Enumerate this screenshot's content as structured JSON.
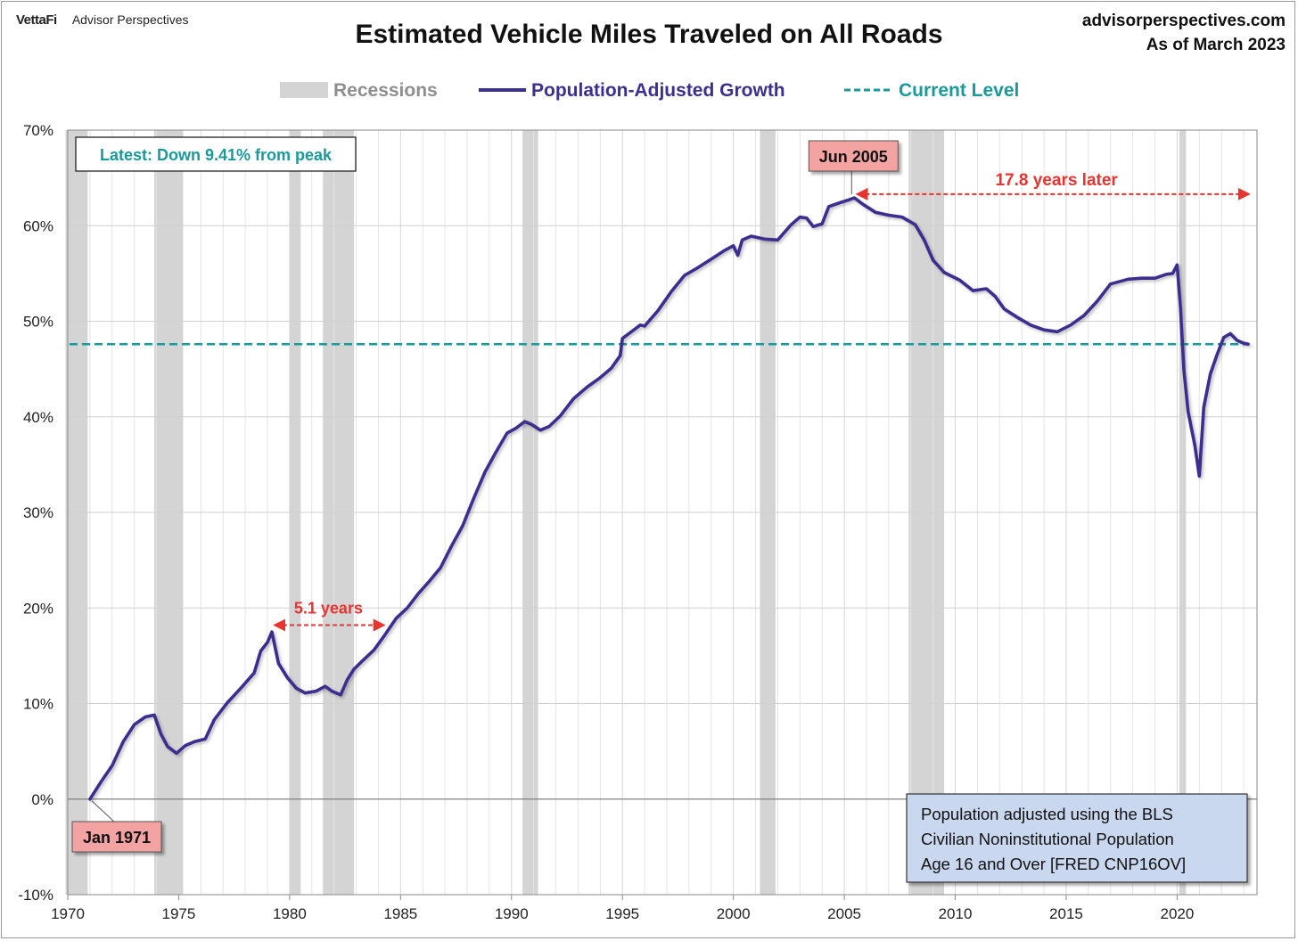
{
  "header": {
    "brand_logo": "VettaFi",
    "brand_name": "Advisor Perspectives",
    "title": "Estimated Vehicle Miles Traveled on All Roads",
    "site": "advisorperspectives.com",
    "as_of": "As of March 2023"
  },
  "colors": {
    "series": "#3b2f8f",
    "current": "#1a9a9a",
    "recession": "#d4d4d4",
    "arrow": "#e8332e",
    "callout_fill": "#f4a3a3",
    "note_fill": "#c9d7ef"
  },
  "chart_data": {
    "type": "line",
    "title": "Estimated Vehicle Miles Traveled on All Roads",
    "xlim": [
      1970,
      2023.6
    ],
    "ylim": [
      -10,
      70
    ],
    "x_ticks": [
      1970,
      1975,
      1980,
      1985,
      1990,
      1995,
      2000,
      2005,
      2010,
      2015,
      2020
    ],
    "y_ticks": [
      -10,
      0,
      10,
      20,
      30,
      40,
      50,
      60,
      70
    ],
    "y_tick_labels": [
      "-10%",
      "0%",
      "10%",
      "20%",
      "30%",
      "40%",
      "50%",
      "60%",
      "70%"
    ],
    "legend": {
      "recessions": "Recessions",
      "series": "Population-Adjusted Growth",
      "current": "Current Level",
      "position": "top-center"
    },
    "recessions": [
      [
        1969.9,
        1970.9
      ],
      [
        1973.9,
        1975.2
      ],
      [
        1980.0,
        1980.5
      ],
      [
        1981.5,
        1982.9
      ],
      [
        1990.5,
        1991.2
      ],
      [
        2001.2,
        2001.9
      ],
      [
        2007.9,
        2009.5
      ],
      [
        2020.1,
        2020.4
      ]
    ],
    "current_level": 47.6,
    "series": [
      {
        "name": "Population-Adjusted Growth",
        "x": [
          1971.0,
          1971.5,
          1972.0,
          1972.5,
          1973.0,
          1973.5,
          1973.9,
          1974.2,
          1974.5,
          1974.9,
          1975.3,
          1975.7,
          1976.2,
          1976.6,
          1977.2,
          1977.8,
          1978.4,
          1978.7,
          1979.0,
          1979.2,
          1979.5,
          1979.9,
          1980.3,
          1980.7,
          1981.2,
          1981.6,
          1981.9,
          1982.3,
          1982.6,
          1982.9,
          1983.3,
          1983.8,
          1984.3,
          1984.8,
          1985.3,
          1985.8,
          1986.3,
          1986.8,
          1987.3,
          1987.8,
          1988.3,
          1988.8,
          1989.3,
          1989.8,
          1990.2,
          1990.6,
          1990.9,
          1991.3,
          1991.7,
          1992.2,
          1992.8,
          1993.4,
          1994.0,
          1994.5,
          1994.9,
          1995.0,
          1995.4,
          1995.8,
          1996.0,
          1996.6,
          1997.2,
          1997.8,
          1998.4,
          1999.0,
          1999.6,
          2000.0,
          2000.2,
          2000.4,
          2000.8,
          2001.4,
          2002.0,
          2002.6,
          2003.0,
          2003.3,
          2003.6,
          2004.0,
          2004.3,
          2004.8,
          2005.2,
          2005.45,
          2005.8,
          2006.4,
          2007.0,
          2007.6,
          2008.2,
          2008.6,
          2009.0,
          2009.5,
          2010.2,
          2010.8,
          2011.4,
          2011.8,
          2012.2,
          2012.8,
          2013.4,
          2014.0,
          2014.6,
          2015.2,
          2015.8,
          2016.4,
          2017.0,
          2017.8,
          2018.4,
          2019.0,
          2019.5,
          2019.8,
          2020.0,
          2020.15,
          2020.3,
          2020.5,
          2020.8,
          2021.0,
          2021.2,
          2021.5,
          2021.8,
          2022.1,
          2022.4,
          2022.7,
          2023.0,
          2023.2
        ],
        "y": [
          0.0,
          1.8,
          3.5,
          6.0,
          7.8,
          8.6,
          8.8,
          6.8,
          5.5,
          4.8,
          5.6,
          6.0,
          6.3,
          8.3,
          10.1,
          11.6,
          13.2,
          15.5,
          16.4,
          17.5,
          14.2,
          12.7,
          11.6,
          11.1,
          11.3,
          11.8,
          11.3,
          10.9,
          12.5,
          13.6,
          14.5,
          15.6,
          17.2,
          18.9,
          20.0,
          21.5,
          22.8,
          24.2,
          26.5,
          28.6,
          31.5,
          34.2,
          36.3,
          38.3,
          38.8,
          39.5,
          39.2,
          38.6,
          39.0,
          40.1,
          41.9,
          43.1,
          44.1,
          45.1,
          46.4,
          48.2,
          48.9,
          49.6,
          49.5,
          51.1,
          53.1,
          54.8,
          55.6,
          56.5,
          57.4,
          57.9,
          56.9,
          58.5,
          58.9,
          58.6,
          58.5,
          60.1,
          60.9,
          60.8,
          59.9,
          60.2,
          62.0,
          62.4,
          62.7,
          62.9,
          62.3,
          61.4,
          61.1,
          60.9,
          60.1,
          58.5,
          56.4,
          55.1,
          54.3,
          53.2,
          53.4,
          52.6,
          51.3,
          50.4,
          49.6,
          49.1,
          48.9,
          49.6,
          50.6,
          52.1,
          53.9,
          54.4,
          54.5,
          54.5,
          54.9,
          55.0,
          55.9,
          51.5,
          45.0,
          40.5,
          37.0,
          33.8,
          41.0,
          44.5,
          46.5,
          48.3,
          48.7,
          48.0,
          47.7,
          47.6
        ]
      }
    ],
    "annotations": {
      "latest": "Latest: Down 9.41% from peak",
      "start_label": "Jan 1971",
      "start_x": 1971.0,
      "peak_label": "Jun 2005",
      "peak_x": 2005.45,
      "peak_y": 62.9,
      "arrow1_label": "5.1 years",
      "arrow1_from": 1979.2,
      "arrow1_to": 1984.3,
      "arrow1_y": 18.2,
      "arrow2_label": "17.8 years later",
      "arrow2_from": 2005.45,
      "arrow2_to": 2023.2,
      "arrow2_y": 63.3,
      "note_line1": "Population adjusted using the BLS",
      "note_line2": "Civilian Noninstitutional Population",
      "note_line3": "Age 16 and Over  [FRED CNP16OV]"
    }
  }
}
